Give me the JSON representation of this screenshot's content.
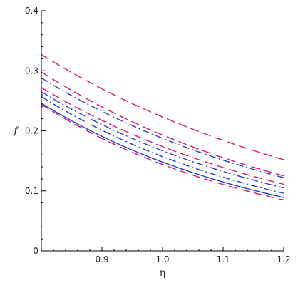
{
  "chart_data": {
    "type": "line",
    "xlabel": "η",
    "ylabel": "f",
    "xlim": [
      0.8,
      1.2
    ],
    "ylim": [
      0,
      0.4
    ],
    "x_ticks": [
      0.9,
      1.0,
      1.1,
      1.2
    ],
    "x_tick_labels": [
      "0.9",
      "1.0",
      "1.1",
      "1.2"
    ],
    "y_ticks": [
      0,
      0.1,
      0.2,
      0.3,
      0.4
    ],
    "y_tick_labels": [
      "0",
      "0.1",
      "0.2",
      "0.3",
      "0.4"
    ],
    "grid": false,
    "legend": "none",
    "x": [
      0.8,
      1.2
    ],
    "series": [
      {
        "color": "#e0157a",
        "dash": "long-dash",
        "values": [
          0.327,
          0.152
        ]
      },
      {
        "color": "#e0157a",
        "dash": "long-dash",
        "values": [
          0.298,
          0.125
        ]
      },
      {
        "color": "#1f3fd6",
        "dash": "dash-dot",
        "values": [
          0.288,
          0.122
        ]
      },
      {
        "color": "#e0157a",
        "dash": "long-dash",
        "values": [
          0.272,
          0.111
        ]
      },
      {
        "color": "#1f3fd6",
        "dash": "dash-dot",
        "values": [
          0.265,
          0.105
        ]
      },
      {
        "color": "#1f3fd6",
        "dash": "dash-dot",
        "values": [
          0.257,
          0.096
        ]
      },
      {
        "color": "#1f3fd6",
        "dash": "solid",
        "values": [
          0.246,
          0.089
        ]
      },
      {
        "color": "#e0157a",
        "dash": "long-dash",
        "values": [
          0.244,
          0.085
        ]
      }
    ]
  }
}
